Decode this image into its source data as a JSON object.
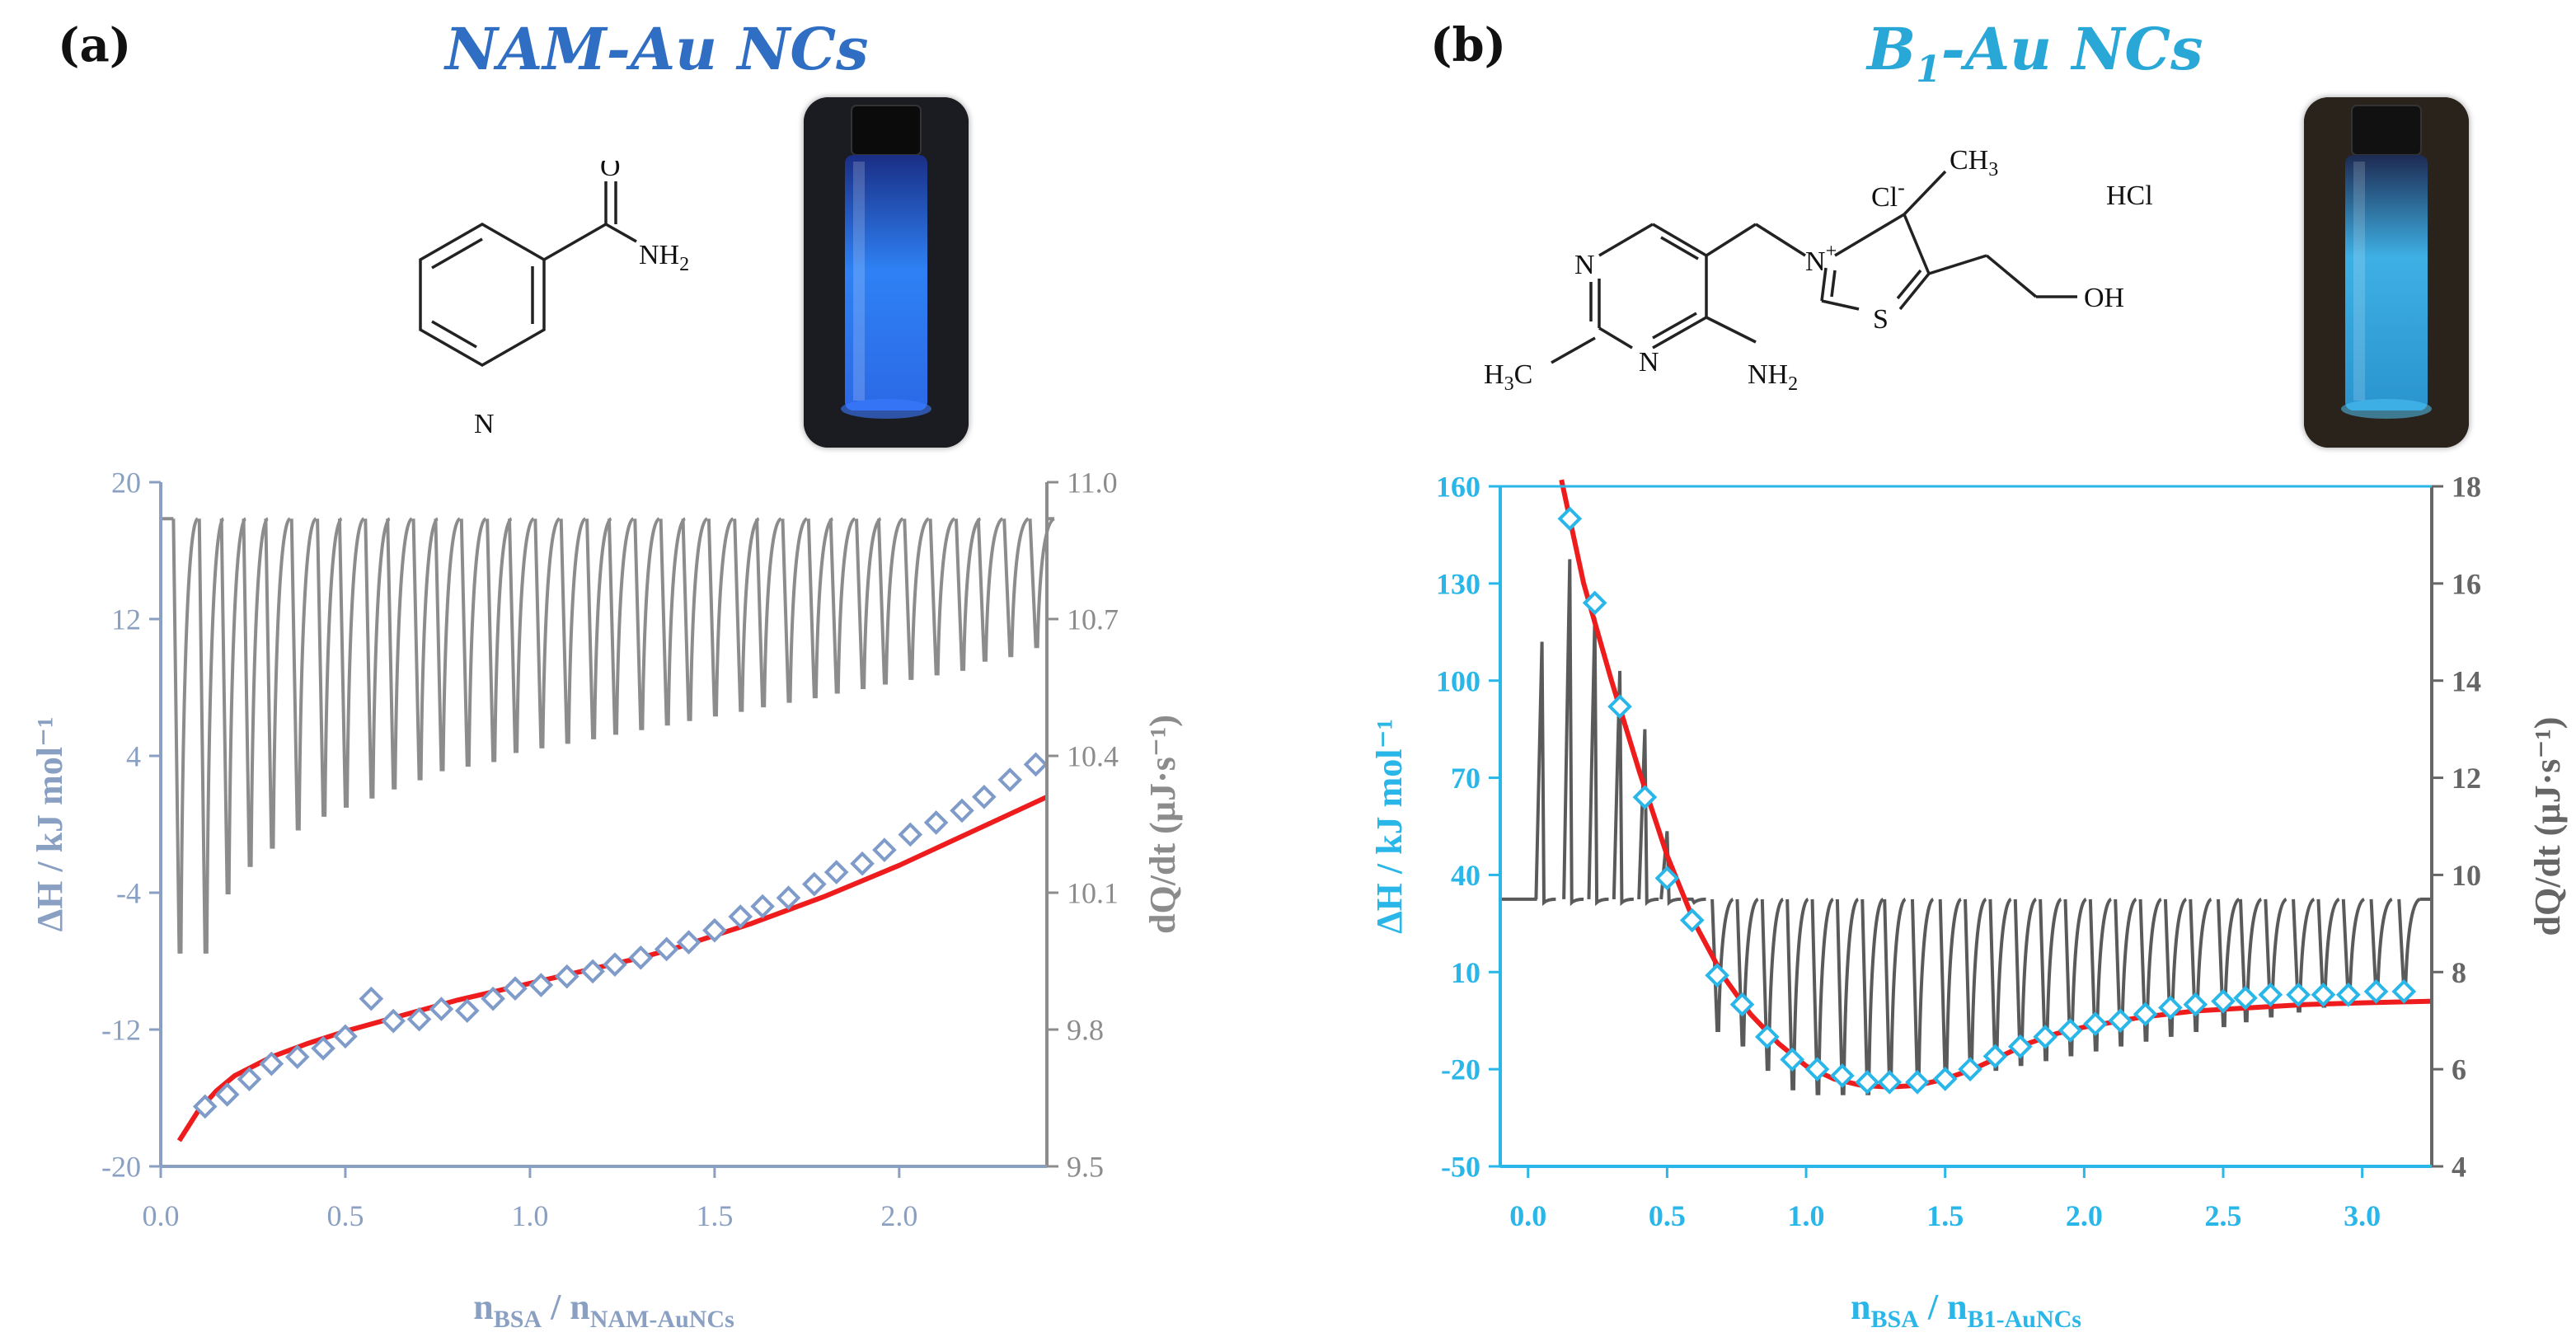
{
  "panels": {
    "a": {
      "label": "(a)",
      "title": "NAM-Au NCs",
      "title_color": "#2f6ec2"
    },
    "b": {
      "label": "(b)",
      "title_main": "B",
      "title_sub": "1",
      "title_rest": "-Au NCs",
      "title_color": "#29a8d8"
    }
  },
  "structures": {
    "nam": {
      "O": "O",
      "NH2": "NH",
      "NH2_sub": "2",
      "N": "N"
    },
    "b1": {
      "N1": "N",
      "N2": "N",
      "H3C": "H",
      "H3C_sub": "3",
      "H3C_rest": "C",
      "NH2": "NH",
      "NH2_sub": "2",
      "Nplus": "N",
      "plus": "+",
      "Cl": "Cl",
      "Cl_charge": "-",
      "CH3": "CH",
      "CH3_sub": "3",
      "S": "S",
      "OH": "OH",
      "HCl": "HCl"
    }
  },
  "chart_data": [
    {
      "type": "scatter",
      "id": "a",
      "color_axis_left": "#8aa0c3",
      "color_axis_right": "#8c8c8c",
      "color_points": "#7f9bc9",
      "color_fit": "#ee1c1c",
      "color_trace": "#8c8c8c",
      "xlabel_main": "n",
      "xlabel_sub1": "BSA",
      "xlabel_sep": " / n",
      "xlabel_sub2": "NAM-AuNCs",
      "ylabel_left": "ΔH / kJ mol⁻¹",
      "ylabel_right": "dQ/dt (µJ·s⁻¹)",
      "xlim": [
        0,
        2.4
      ],
      "ylim_left": [
        -20,
        20
      ],
      "ylim_right": [
        9.5,
        11.0
      ],
      "xticks": [
        0,
        0.5,
        1.0,
        1.5,
        2.0
      ],
      "xtick_labels": [
        "0.0",
        "0.5",
        "1.0",
        "1.5",
        "2.0"
      ],
      "yticks_left": [
        20,
        12,
        4,
        -4,
        -12,
        -20
      ],
      "ytick_labels_left": [
        "20",
        "12",
        "4",
        "-4",
        "-12",
        "-20"
      ],
      "yticks_right": [
        11.0,
        10.7,
        10.4,
        10.1,
        9.8,
        9.5
      ],
      "ytick_labels_right": [
        "11.0",
        "10.7",
        "10.4",
        "10.1",
        "9.8",
        "9.5"
      ],
      "series": [
        {
          "name": "measured ΔH",
          "kind": "points",
          "x": [
            0.12,
            0.18,
            0.24,
            0.3,
            0.37,
            0.44,
            0.5,
            0.57,
            0.63,
            0.7,
            0.76,
            0.83,
            0.9,
            0.96,
            1.03,
            1.1,
            1.17,
            1.23,
            1.3,
            1.37,
            1.43,
            1.5,
            1.57,
            1.63,
            1.7,
            1.77,
            1.83,
            1.9,
            1.96,
            2.03,
            2.1,
            2.17,
            2.23,
            2.3,
            2.37
          ],
          "y": [
            -16.5,
            -15.8,
            -14.9,
            -14.0,
            -13.6,
            -13.1,
            -12.4,
            -10.2,
            -11.5,
            -11.4,
            -10.8,
            -10.9,
            -10.2,
            -9.6,
            -9.4,
            -8.9,
            -8.6,
            -8.2,
            -7.8,
            -7.3,
            -6.9,
            -6.2,
            -5.4,
            -4.8,
            -4.3,
            -3.5,
            -2.8,
            -2.3,
            -1.5,
            -0.6,
            0.1,
            0.8,
            1.6,
            2.6,
            3.5
          ]
        },
        {
          "name": "fit",
          "kind": "line",
          "x": [
            0.05,
            0.1,
            0.15,
            0.2,
            0.3,
            0.4,
            0.5,
            0.6,
            0.7,
            0.8,
            0.9,
            1.0,
            1.1,
            1.2,
            1.3,
            1.4,
            1.5,
            1.6,
            1.7,
            1.8,
            1.9,
            2.0,
            2.1,
            2.2,
            2.3,
            2.4
          ],
          "y": [
            -18.5,
            -16.8,
            -15.6,
            -14.7,
            -13.6,
            -12.8,
            -12.1,
            -11.5,
            -10.9,
            -10.3,
            -9.8,
            -9.3,
            -8.8,
            -8.3,
            -7.8,
            -7.2,
            -6.5,
            -5.8,
            -5.0,
            -4.2,
            -3.3,
            -2.4,
            -1.4,
            -0.4,
            0.6,
            1.6
          ]
        },
        {
          "name": "heat flow trace",
          "kind": "injection_trace",
          "axis": "right",
          "baseline": 10.92,
          "peak_x": [
            0.05,
            0.12,
            0.18,
            0.24,
            0.3,
            0.37,
            0.44,
            0.5,
            0.57,
            0.63,
            0.7,
            0.76,
            0.83,
            0.9,
            0.96,
            1.03,
            1.1,
            1.17,
            1.23,
            1.3,
            1.37,
            1.43,
            1.5,
            1.57,
            1.63,
            1.7,
            1.77,
            1.83,
            1.9,
            1.96,
            2.03,
            2.1,
            2.17,
            2.23,
            2.3,
            2.37
          ],
          "peak_min": [
            9.97,
            9.97,
            10.1,
            10.16,
            10.2,
            10.24,
            10.27,
            10.29,
            10.31,
            10.33,
            10.35,
            10.37,
            10.38,
            10.39,
            10.41,
            10.42,
            10.43,
            10.44,
            10.45,
            10.46,
            10.47,
            10.48,
            10.49,
            10.5,
            10.51,
            10.52,
            10.53,
            10.54,
            10.55,
            10.56,
            10.57,
            10.58,
            10.59,
            10.61,
            10.62,
            10.64
          ]
        }
      ]
    },
    {
      "type": "scatter",
      "id": "b",
      "color_axis_left": "#29b6e8",
      "color_axis_right": "#666666",
      "color_points": "#29b6e8",
      "color_fit": "#ee1c1c",
      "color_trace": "#5a5a5a",
      "xlabel_main": "n",
      "xlabel_sub1": "BSA",
      "xlabel_sep": " / n",
      "xlabel_sub2": "B1-AuNCs",
      "ylabel_left": "ΔH / kJ mol⁻¹",
      "ylabel_right": "dQ/dt (µJ·s⁻¹)",
      "xlim": [
        -0.1,
        3.25
      ],
      "ylim_left": [
        -50,
        160
      ],
      "ylim_right": [
        4,
        18
      ],
      "xticks": [
        0,
        0.5,
        1.0,
        1.5,
        2.0,
        2.5,
        3.0
      ],
      "xtick_labels": [
        "0.0",
        "0.5",
        "1.0",
        "1.5",
        "2.0",
        "2.5",
        "3.0"
      ],
      "yticks_left": [
        160,
        130,
        100,
        70,
        40,
        10,
        -20,
        -50
      ],
      "ytick_labels_left": [
        "160",
        "130",
        "100",
        "70",
        "40",
        "10",
        "-20",
        "-50"
      ],
      "yticks_right": [
        18,
        16,
        14,
        12,
        10,
        8,
        6,
        4
      ],
      "ytick_labels_right": [
        "18",
        "16",
        "14",
        "12",
        "10",
        "8",
        "6",
        "4"
      ],
      "series": [
        {
          "name": "measured ΔH",
          "kind": "points",
          "x": [
            0.15,
            0.24,
            0.33,
            0.42,
            0.5,
            0.59,
            0.68,
            0.77,
            0.86,
            0.95,
            1.04,
            1.13,
            1.22,
            1.3,
            1.4,
            1.5,
            1.59,
            1.68,
            1.77,
            1.86,
            1.95,
            2.04,
            2.13,
            2.22,
            2.31,
            2.4,
            2.5,
            2.58,
            2.67,
            2.77,
            2.86,
            2.95,
            3.05,
            3.15
          ],
          "y": [
            150,
            124,
            92,
            64,
            39,
            26,
            9,
            0,
            -10,
            -17,
            -20,
            -22,
            -24,
            -24,
            -24,
            -23,
            -20,
            -16,
            -13,
            -10,
            -8,
            -6,
            -5,
            -3,
            -1,
            0,
            1,
            2,
            3,
            3,
            3,
            3,
            4,
            4
          ]
        },
        {
          "name": "fit",
          "kind": "line",
          "x": [
            0.12,
            0.2,
            0.3,
            0.4,
            0.5,
            0.6,
            0.7,
            0.8,
            0.9,
            1.0,
            1.1,
            1.2,
            1.3,
            1.4,
            1.5,
            1.6,
            1.7,
            1.8,
            1.9,
            2.0,
            2.2,
            2.4,
            2.6,
            2.8,
            3.0,
            3.25
          ],
          "y": [
            162,
            130,
            100,
            72,
            46,
            25,
            9,
            -3,
            -12,
            -19,
            -23,
            -25,
            -25.5,
            -25,
            -23,
            -20,
            -16,
            -12,
            -9,
            -7,
            -4,
            -2,
            -1,
            0,
            0.5,
            1
          ]
        },
        {
          "name": "heat flow trace",
          "kind": "injection_trace",
          "axis": "right",
          "baseline": 9.5,
          "peak_x": [
            0.05,
            0.15,
            0.24,
            0.33,
            0.42,
            0.5,
            0.59,
            0.68,
            0.77,
            0.86,
            0.95,
            1.04,
            1.13,
            1.22,
            1.3,
            1.4,
            1.5,
            1.59,
            1.68,
            1.77,
            1.86,
            1.95,
            2.04,
            2.13,
            2.22,
            2.31,
            2.4,
            2.5,
            2.58,
            2.67,
            2.77,
            2.86,
            2.95,
            3.05,
            3.15
          ],
          "peak_min": [
            14.8,
            16.5,
            15.3,
            14.2,
            13.0,
            10.9,
            9.5,
            6.8,
            6.5,
            6.0,
            5.6,
            5.5,
            5.5,
            5.5,
            5.6,
            5.7,
            5.8,
            5.9,
            6.0,
            6.1,
            6.2,
            6.3,
            6.4,
            6.5,
            6.6,
            6.7,
            6.8,
            6.9,
            7.0,
            7.1,
            7.2,
            7.3,
            7.4,
            7.5,
            7.6
          ],
          "peak_dir": [
            "up",
            "up",
            "up",
            "up",
            "up",
            "up",
            "up",
            "down",
            "down",
            "down",
            "down",
            "down",
            "down",
            "down",
            "down",
            "down",
            "down",
            "down",
            "down",
            "down",
            "down",
            "down",
            "down",
            "down",
            "down",
            "down",
            "down",
            "down",
            "down",
            "down",
            "down",
            "down",
            "down",
            "down",
            "down"
          ]
        }
      ]
    }
  ]
}
